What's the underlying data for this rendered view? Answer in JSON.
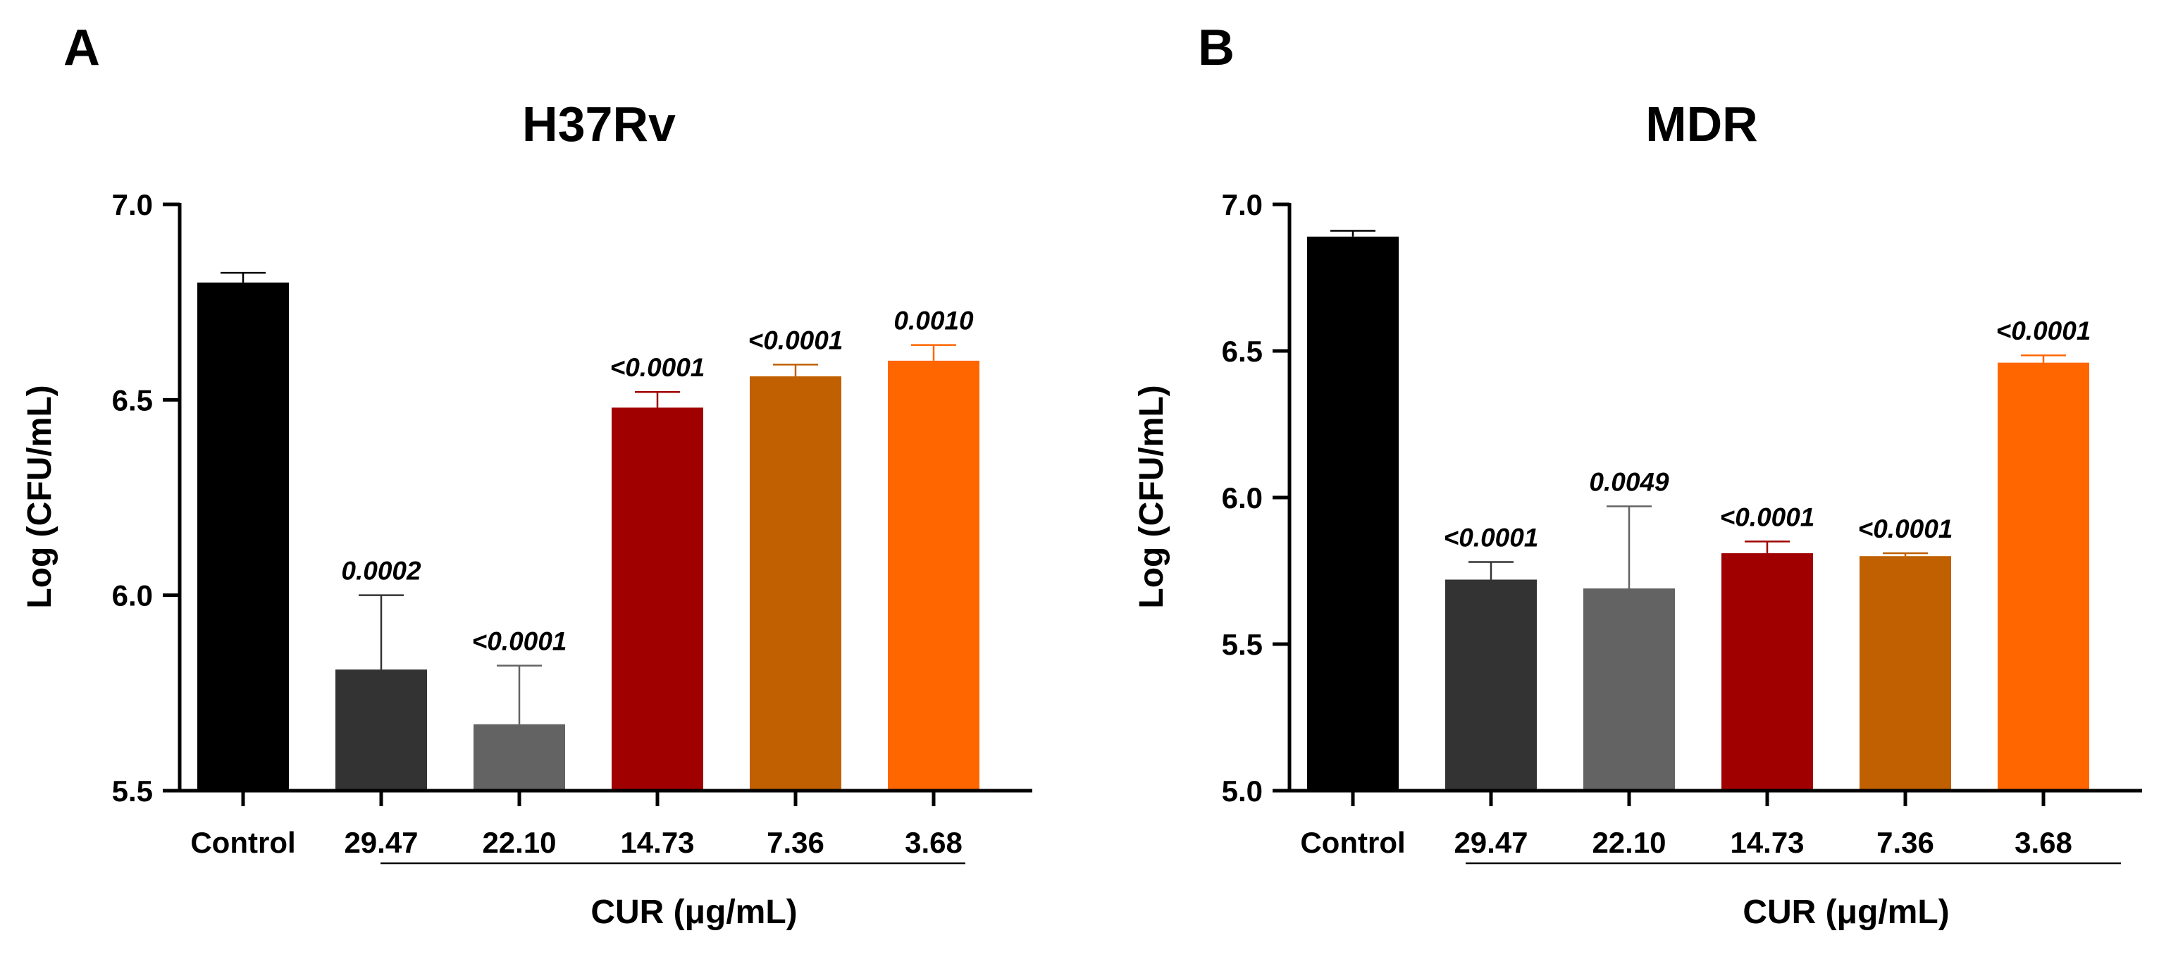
{
  "chart_data": [
    {
      "panel": "A",
      "type": "bar",
      "title": "H37Rv",
      "ylabel": "Log (CFU/mL)",
      "xlabel": "CUR (μg/mL)",
      "categories": [
        "Control",
        "29.47",
        "22.10",
        "14.73",
        "7.36",
        "3.68"
      ],
      "values": [
        6.8,
        5.81,
        5.67,
        6.48,
        6.56,
        6.6
      ],
      "errors": [
        0.025,
        0.19,
        0.15,
        0.04,
        0.03,
        0.04
      ],
      "p_values": [
        "",
        "0.0002",
        "<0.0001",
        "<0.0001",
        "<0.0001",
        "0.0010"
      ],
      "colors": [
        "#000000",
        "#333333",
        "#636363",
        "#A00000",
        "#C06000",
        "#FF6600"
      ],
      "ylim": [
        5.5,
        7.0
      ],
      "yticks": [
        "5.5",
        "6.0",
        "6.5",
        "7.0"
      ],
      "grid": false
    },
    {
      "panel": "B",
      "type": "bar",
      "title": "MDR",
      "ylabel": "Log (CFU/mL)",
      "xlabel": "CUR (μg/mL)",
      "categories": [
        "Control",
        "29.47",
        "22.10",
        "14.73",
        "7.36",
        "3.68"
      ],
      "values": [
        6.89,
        5.72,
        5.69,
        5.81,
        5.8,
        6.46
      ],
      "errors": [
        0.02,
        0.06,
        0.28,
        0.04,
        0.01,
        0.025
      ],
      "p_values": [
        "",
        "<0.0001",
        "0.0049",
        "<0.0001",
        "<0.0001",
        "<0.0001"
      ],
      "colors": [
        "#000000",
        "#333333",
        "#636363",
        "#A00000",
        "#C06000",
        "#FF6600"
      ],
      "ylim": [
        5.0,
        7.0
      ],
      "yticks": [
        "5.0",
        "5.5",
        "6.0",
        "6.5",
        "7.0"
      ],
      "grid": false
    }
  ]
}
